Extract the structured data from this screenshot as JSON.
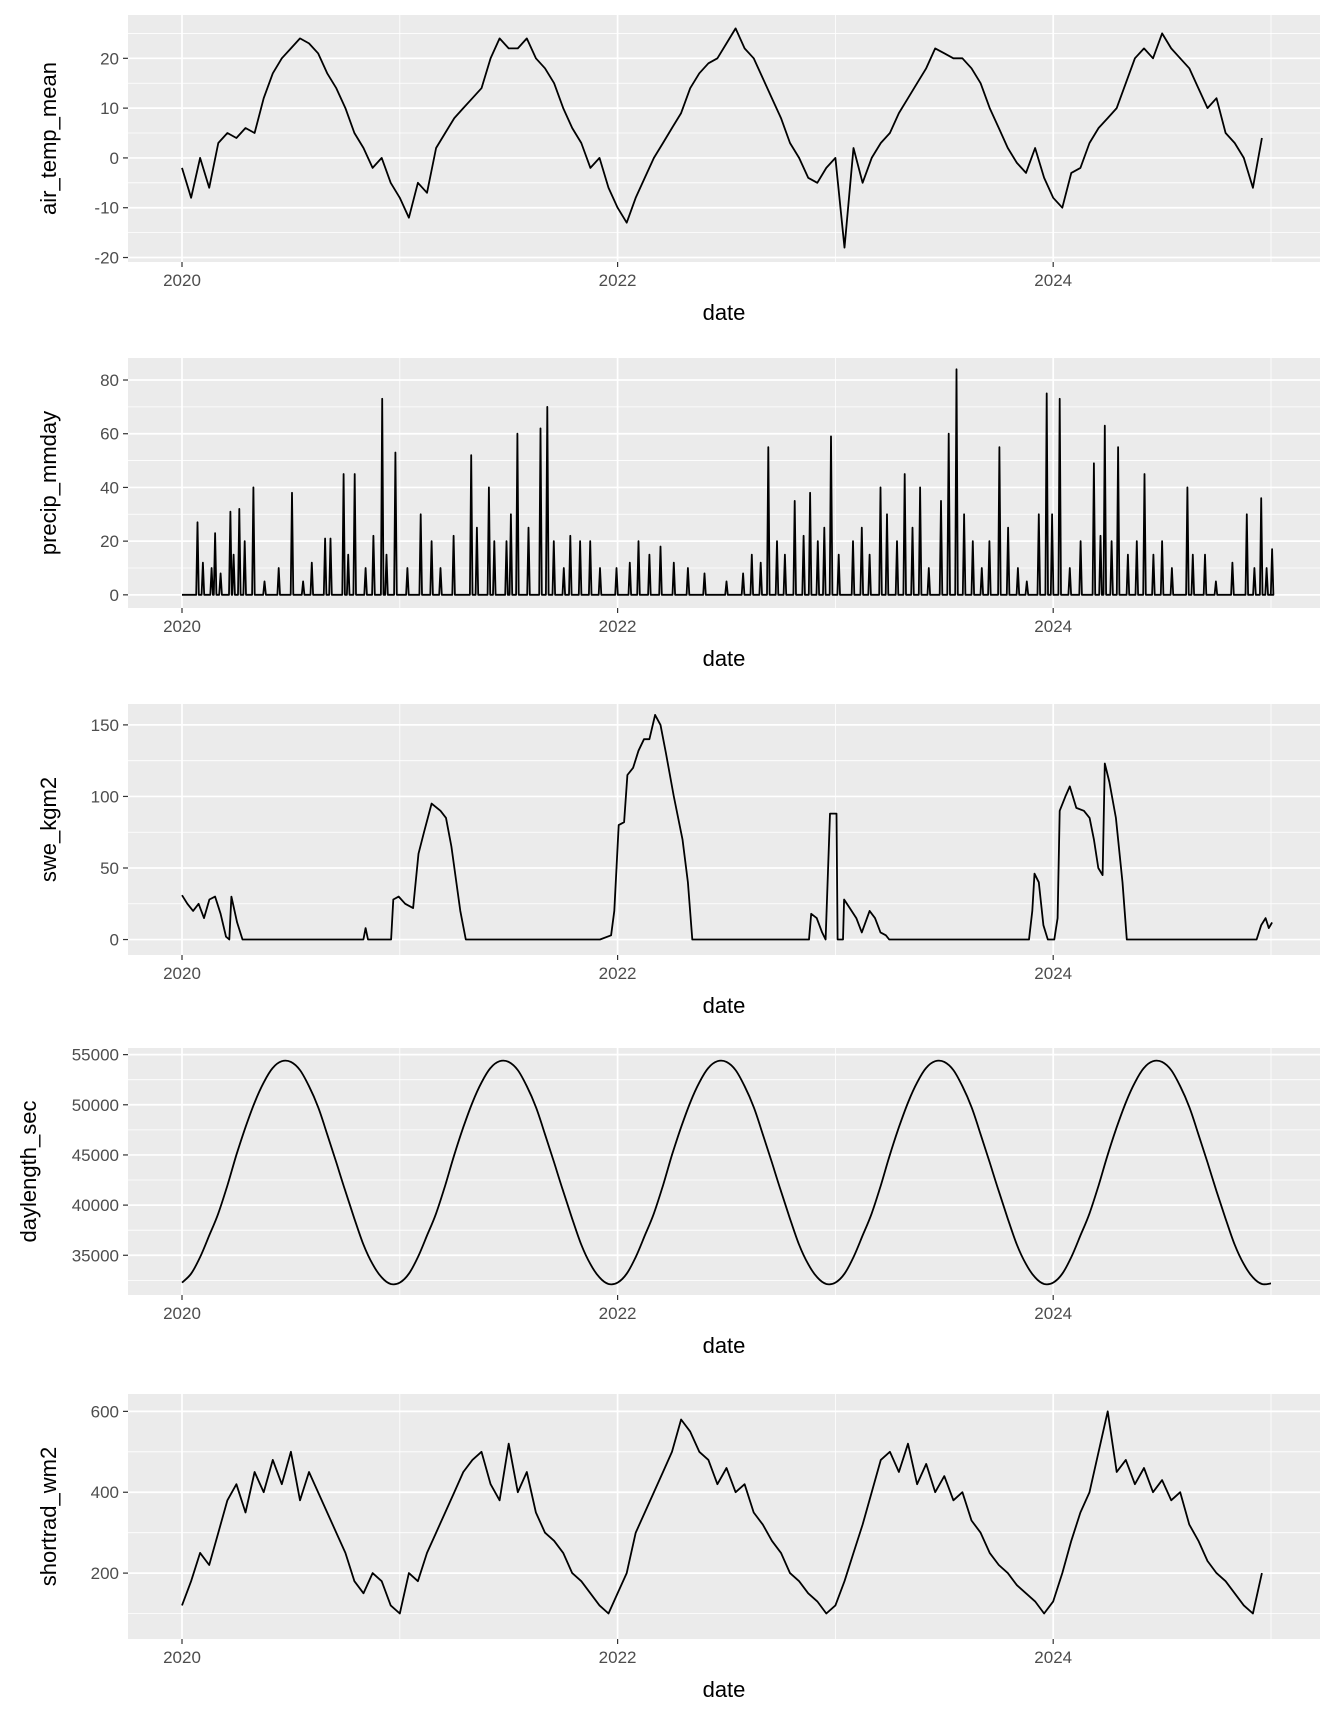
{
  "chart_data": [
    {
      "type": "line",
      "xlabel": "date",
      "ylabel": "air_temp_mean",
      "xlim": [
        2019.75,
        2025.22
      ],
      "xticks": [
        "2020",
        "2022",
        "2024"
      ],
      "xtick_values": [
        2020,
        2022,
        2024
      ],
      "ylim": [
        -20.9,
        28.7
      ],
      "yticks": [
        "-20",
        "-10",
        "0",
        "10",
        "20"
      ],
      "ytick_values": [
        -20,
        -10,
        0,
        10,
        20
      ],
      "grid": true,
      "sampling": "semi-monthly from 2020-01-01",
      "values": [
        -2,
        -8,
        0,
        -6,
        3,
        5,
        4,
        6,
        5,
        12,
        17,
        20,
        22,
        24,
        23,
        21,
        17,
        14,
        10,
        5,
        2,
        -2,
        0,
        -5,
        -8,
        -12,
        -5,
        -7,
        2,
        5,
        8,
        10,
        12,
        14,
        20,
        24,
        22,
        22,
        24,
        20,
        18,
        15,
        10,
        6,
        3,
        -2,
        0,
        -6,
        -10,
        -13,
        -8,
        -4,
        0,
        3,
        6,
        9,
        14,
        17,
        19,
        20,
        23,
        26,
        22,
        20,
        16,
        12,
        8,
        3,
        0,
        -4,
        -5,
        -2,
        0,
        -18,
        2,
        -5,
        0,
        3,
        5,
        9,
        12,
        15,
        18,
        22,
        21,
        20,
        20,
        18,
        15,
        10,
        6,
        2,
        -1,
        -3,
        2,
        -4,
        -8,
        -10,
        -3,
        -2,
        3,
        6,
        8,
        10,
        15,
        20,
        22,
        20,
        25,
        22,
        20,
        18,
        14,
        10,
        12,
        5,
        3,
        0,
        -6,
        4
      ]
    },
    {
      "type": "line",
      "xlabel": "date",
      "ylabel": "precip_mmday",
      "xlim": [
        2019.75,
        2025.22
      ],
      "xticks": [
        "2020",
        "2022",
        "2024"
      ],
      "xtick_values": [
        2020,
        2022,
        2024
      ],
      "ylim": [
        -4.9,
        88.2
      ],
      "yticks": [
        "0",
        "20",
        "40",
        "60",
        "80"
      ],
      "ytick_values": [
        0,
        20,
        40,
        60,
        80
      ],
      "grid": true,
      "baseline": 0,
      "points": [
        [
          2020.071,
          27
        ],
        [
          2020.096,
          12
        ],
        [
          2020.136,
          10
        ],
        [
          2020.152,
          23
        ],
        [
          2020.177,
          8
        ],
        [
          2020.222,
          31
        ],
        [
          2020.237,
          15
        ],
        [
          2020.263,
          32
        ],
        [
          2020.288,
          20
        ],
        [
          2020.328,
          40
        ],
        [
          2020.379,
          5
        ],
        [
          2020.444,
          10
        ],
        [
          2020.505,
          38
        ],
        [
          2020.556,
          5
        ],
        [
          2020.596,
          12
        ],
        [
          2020.657,
          21
        ],
        [
          2020.682,
          21
        ],
        [
          2020.742,
          45
        ],
        [
          2020.763,
          15
        ],
        [
          2020.793,
          45
        ],
        [
          2020.843,
          10
        ],
        [
          2020.879,
          22
        ],
        [
          2020.919,
          73
        ],
        [
          2020.939,
          15
        ],
        [
          2020.98,
          53
        ],
        [
          2021.035,
          10
        ],
        [
          2021.096,
          30
        ],
        [
          2021.146,
          20
        ],
        [
          2021.187,
          10
        ],
        [
          2021.247,
          22
        ],
        [
          2021.328,
          52
        ],
        [
          2021.354,
          25
        ],
        [
          2021.409,
          40
        ],
        [
          2021.434,
          20
        ],
        [
          2021.49,
          20
        ],
        [
          2021.51,
          30
        ],
        [
          2021.54,
          60
        ],
        [
          2021.591,
          25
        ],
        [
          2021.646,
          62
        ],
        [
          2021.677,
          70
        ],
        [
          2021.707,
          20
        ],
        [
          2021.753,
          10
        ],
        [
          2021.783,
          22
        ],
        [
          2021.828,
          20
        ],
        [
          2021.874,
          20
        ],
        [
          2021.919,
          10
        ],
        [
          2021.995,
          10
        ],
        [
          2022.056,
          12
        ],
        [
          2022.096,
          20
        ],
        [
          2022.146,
          15
        ],
        [
          2022.197,
          18
        ],
        [
          2022.258,
          12
        ],
        [
          2022.323,
          10
        ],
        [
          2022.399,
          8
        ],
        [
          2022.5,
          5
        ],
        [
          2022.576,
          8
        ],
        [
          2022.616,
          15
        ],
        [
          2022.657,
          12
        ],
        [
          2022.692,
          55
        ],
        [
          2022.732,
          20
        ],
        [
          2022.768,
          15
        ],
        [
          2022.813,
          35
        ],
        [
          2022.854,
          22
        ],
        [
          2022.884,
          38
        ],
        [
          2022.919,
          20
        ],
        [
          2022.949,
          25
        ],
        [
          2022.98,
          59
        ],
        [
          2023.015,
          15
        ],
        [
          2023.081,
          20
        ],
        [
          2023.121,
          25
        ],
        [
          2023.157,
          15
        ],
        [
          2023.207,
          40
        ],
        [
          2023.237,
          30
        ],
        [
          2023.283,
          20
        ],
        [
          2023.318,
          45
        ],
        [
          2023.354,
          25
        ],
        [
          2023.389,
          40
        ],
        [
          2023.429,
          10
        ],
        [
          2023.485,
          35
        ],
        [
          2023.52,
          60
        ],
        [
          2023.556,
          84
        ],
        [
          2023.591,
          30
        ],
        [
          2023.631,
          20
        ],
        [
          2023.672,
          10
        ],
        [
          2023.707,
          20
        ],
        [
          2023.753,
          55
        ],
        [
          2023.793,
          25
        ],
        [
          2023.838,
          10
        ],
        [
          2023.879,
          5
        ],
        [
          2023.934,
          30
        ],
        [
          2023.97,
          75
        ],
        [
          2023.995,
          30
        ],
        [
          2024.03,
          73
        ],
        [
          2024.076,
          10
        ],
        [
          2024.126,
          20
        ],
        [
          2024.187,
          49
        ],
        [
          2024.217,
          22
        ],
        [
          2024.237,
          63
        ],
        [
          2024.268,
          20
        ],
        [
          2024.298,
          55
        ],
        [
          2024.343,
          15
        ],
        [
          2024.384,
          20
        ],
        [
          2024.419,
          45
        ],
        [
          2024.46,
          15
        ],
        [
          2024.5,
          20
        ],
        [
          2024.545,
          10
        ],
        [
          2024.616,
          40
        ],
        [
          2024.641,
          15
        ],
        [
          2024.697,
          15
        ],
        [
          2024.747,
          5
        ],
        [
          2024.823,
          12
        ],
        [
          2024.889,
          30
        ],
        [
          2024.924,
          10
        ],
        [
          2024.955,
          36
        ],
        [
          2024.98,
          10
        ],
        [
          2025.005,
          17
        ]
      ]
    },
    {
      "type": "line",
      "xlabel": "date",
      "ylabel": "swe_kgm2",
      "xlim": [
        2019.75,
        2025.22
      ],
      "xticks": [
        "2020",
        "2022",
        "2024"
      ],
      "xtick_values": [
        2020,
        2022,
        2024
      ],
      "ylim": [
        -10.8,
        164.6
      ],
      "yticks": [
        "0",
        "50",
        "100",
        "150"
      ],
      "ytick_values": [
        0,
        50,
        100,
        150
      ],
      "grid": true,
      "points": [
        [
          2020.0,
          31
        ],
        [
          2020.025,
          25
        ],
        [
          2020.051,
          20
        ],
        [
          2020.076,
          25
        ],
        [
          2020.101,
          15
        ],
        [
          2020.126,
          28
        ],
        [
          2020.152,
          30
        ],
        [
          2020.177,
          18
        ],
        [
          2020.202,
          2
        ],
        [
          2020.217,
          0
        ],
        [
          2020.227,
          30
        ],
        [
          2020.253,
          12
        ],
        [
          2020.278,
          0
        ],
        [
          2020.833,
          0
        ],
        [
          2020.843,
          8
        ],
        [
          2020.854,
          0
        ],
        [
          2020.96,
          0
        ],
        [
          2020.97,
          28
        ],
        [
          2020.995,
          30
        ],
        [
          2021.025,
          25
        ],
        [
          2021.061,
          22
        ],
        [
          2021.086,
          60
        ],
        [
          2021.111,
          75
        ],
        [
          2021.146,
          95
        ],
        [
          2021.187,
          90
        ],
        [
          2021.212,
          85
        ],
        [
          2021.237,
          65
        ],
        [
          2021.278,
          20
        ],
        [
          2021.303,
          0
        ],
        [
          2021.919,
          0
        ],
        [
          2021.97,
          3
        ],
        [
          2021.985,
          20
        ],
        [
          2022.005,
          80
        ],
        [
          2022.03,
          82
        ],
        [
          2022.045,
          115
        ],
        [
          2022.071,
          120
        ],
        [
          2022.096,
          132
        ],
        [
          2022.121,
          140
        ],
        [
          2022.146,
          140
        ],
        [
          2022.172,
          157
        ],
        [
          2022.197,
          150
        ],
        [
          2022.222,
          130
        ],
        [
          2022.258,
          100
        ],
        [
          2022.298,
          70
        ],
        [
          2022.323,
          40
        ],
        [
          2022.343,
          0
        ],
        [
          2022.879,
          0
        ],
        [
          2022.889,
          18
        ],
        [
          2022.914,
          15
        ],
        [
          2022.939,
          5
        ],
        [
          2022.955,
          0
        ],
        [
          2022.975,
          88
        ],
        [
          2023.005,
          88
        ],
        [
          2023.01,
          0
        ],
        [
          2023.035,
          0
        ],
        [
          2023.04,
          28
        ],
        [
          2023.066,
          22
        ],
        [
          2023.096,
          15
        ],
        [
          2023.121,
          5
        ],
        [
          2023.157,
          20
        ],
        [
          2023.182,
          15
        ],
        [
          2023.207,
          5
        ],
        [
          2023.232,
          3
        ],
        [
          2023.247,
          0
        ],
        [
          2023.889,
          0
        ],
        [
          2023.904,
          20
        ],
        [
          2023.914,
          46
        ],
        [
          2023.934,
          40
        ],
        [
          2023.955,
          10
        ],
        [
          2023.975,
          0
        ],
        [
          2024.005,
          0
        ],
        [
          2024.02,
          15
        ],
        [
          2024.03,
          90
        ],
        [
          2024.056,
          100
        ],
        [
          2024.076,
          107
        ],
        [
          2024.106,
          92
        ],
        [
          2024.141,
          90
        ],
        [
          2024.167,
          85
        ],
        [
          2024.187,
          70
        ],
        [
          2024.207,
          50
        ],
        [
          2024.227,
          45
        ],
        [
          2024.237,
          123
        ],
        [
          2024.258,
          110
        ],
        [
          2024.288,
          85
        ],
        [
          2024.318,
          40
        ],
        [
          2024.338,
          0
        ],
        [
          2024.934,
          0
        ],
        [
          2024.955,
          10
        ],
        [
          2024.975,
          15
        ],
        [
          2024.99,
          8
        ],
        [
          2025.005,
          12
        ]
      ]
    },
    {
      "type": "line",
      "xlabel": "date",
      "ylabel": "daylength_sec",
      "xlim": [
        2019.75,
        2025.22
      ],
      "xticks": [
        "2020",
        "2022",
        "2024"
      ],
      "xtick_values": [
        2020,
        2022,
        2024
      ],
      "ylim": [
        31040,
        55660
      ],
      "yticks": [
        "35000",
        "40000",
        "45000",
        "50000",
        "55000"
      ],
      "ytick_values": [
        35000,
        40000,
        45000,
        50000,
        55000
      ],
      "grid": true,
      "sampling": "semi-monthly from 2020-01-01",
      "values": [
        32280,
        33160,
        34820,
        36970,
        39170,
        41950,
        45010,
        47770,
        50220,
        52210,
        53680,
        54340,
        54270,
        53460,
        51850,
        49770,
        47060,
        44260,
        41390,
        38640,
        36050,
        34120,
        32790,
        32140,
        32280,
        33160,
        34820,
        36970,
        39170,
        41950,
        45010,
        47770,
        50220,
        52210,
        53680,
        54340,
        54270,
        53460,
        51850,
        49770,
        47060,
        44260,
        41390,
        38640,
        36050,
        34120,
        32790,
        32140,
        32280,
        33160,
        34820,
        36970,
        39170,
        41950,
        45010,
        47770,
        50220,
        52210,
        53680,
        54340,
        54270,
        53460,
        51850,
        49770,
        47060,
        44260,
        41390,
        38640,
        36050,
        34120,
        32790,
        32140,
        32280,
        33160,
        34820,
        36970,
        39170,
        41950,
        45010,
        47770,
        50220,
        52210,
        53680,
        54340,
        54270,
        53460,
        51850,
        49770,
        47060,
        44260,
        41390,
        38640,
        36050,
        34120,
        32790,
        32140,
        32280,
        33160,
        34820,
        36970,
        39170,
        41950,
        45010,
        47770,
        50220,
        52210,
        53680,
        54340,
        54270,
        53460,
        51850,
        49770,
        47060,
        44260,
        41390,
        38640,
        36050,
        34120,
        32790,
        32140,
        32200
      ]
    },
    {
      "type": "line",
      "xlabel": "date",
      "ylabel": "shortrad_wm2",
      "xlim": [
        2019.75,
        2025.22
      ],
      "xticks": [
        "2020",
        "2022",
        "2024"
      ],
      "xtick_values": [
        2020,
        2022,
        2024
      ],
      "ylim": [
        37,
        643
      ],
      "yticks": [
        "200",
        "400",
        "600"
      ],
      "ytick_values": [
        200,
        400,
        600
      ],
      "grid": true,
      "sampling": "semi-monthly from 2020-01-01",
      "values": [
        120,
        180,
        250,
        220,
        300,
        380,
        420,
        350,
        450,
        400,
        480,
        420,
        500,
        380,
        450,
        400,
        350,
        300,
        250,
        180,
        150,
        200,
        180,
        120,
        100,
        200,
        180,
        250,
        300,
        350,
        400,
        450,
        480,
        500,
        420,
        380,
        520,
        400,
        450,
        350,
        300,
        280,
        250,
        200,
        180,
        150,
        120,
        100,
        150,
        200,
        300,
        350,
        400,
        450,
        500,
        580,
        550,
        500,
        480,
        420,
        460,
        400,
        420,
        350,
        320,
        280,
        250,
        200,
        180,
        150,
        130,
        100,
        120,
        180,
        250,
        320,
        400,
        480,
        500,
        450,
        520,
        420,
        470,
        400,
        440,
        380,
        400,
        330,
        300,
        250,
        220,
        200,
        170,
        150,
        130,
        100,
        130,
        200,
        280,
        350,
        400,
        500,
        600,
        450,
        480,
        420,
        460,
        400,
        430,
        380,
        400,
        320,
        280,
        230,
        200,
        180,
        150,
        120,
        100,
        200
      ]
    }
  ]
}
